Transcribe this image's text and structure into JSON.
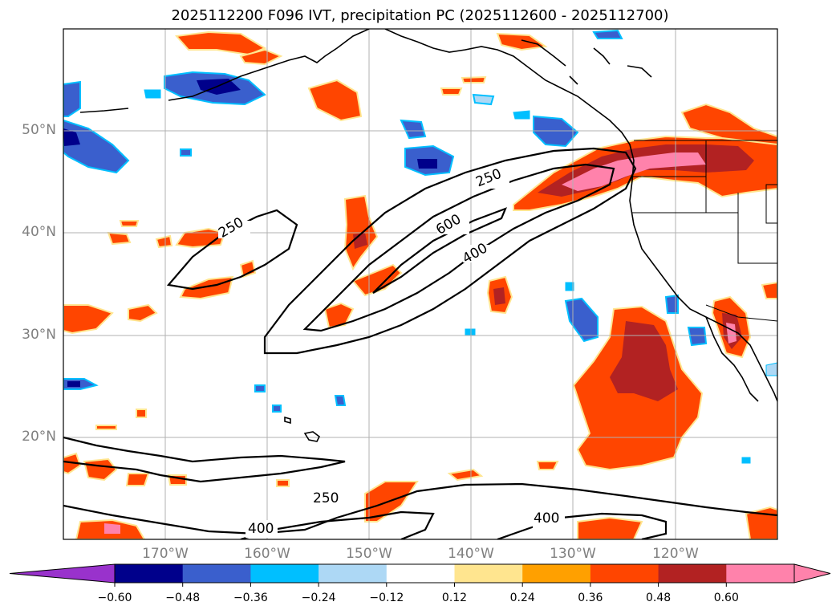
{
  "title": "2025112200 F096 IVT, precipitation PC (2025112600 - 2025112700)",
  "map": {
    "lon_min": -180,
    "lon_max": -110,
    "lat_min": 10,
    "lat_max": 60,
    "lat_labels": [
      "50°N",
      "40°N",
      "30°N",
      "20°N"
    ],
    "lon_labels": [
      "170°W",
      "160°W",
      "150°W",
      "140°W",
      "130°W",
      "120°W"
    ],
    "contour_labels": [
      "250",
      "600",
      "400",
      "250",
      "250",
      "400",
      "400"
    ],
    "grid_color": "#b0b0b0"
  },
  "colorbar": {
    "tick_labels": [
      "−0.60",
      "−0.48",
      "−0.36",
      "−0.24",
      "−0.12",
      "0.12",
      "0.24",
      "0.36",
      "0.48",
      "0.60"
    ],
    "colors": [
      "#9932cc",
      "#00008b",
      "#3a5fcd",
      "#00bfff",
      "#add8f5",
      "#ffffff",
      "#ffe58f",
      "#ffa000",
      "#ff4500",
      "#b22222",
      "#ff82ab",
      "#ff82ab"
    ]
  }
}
